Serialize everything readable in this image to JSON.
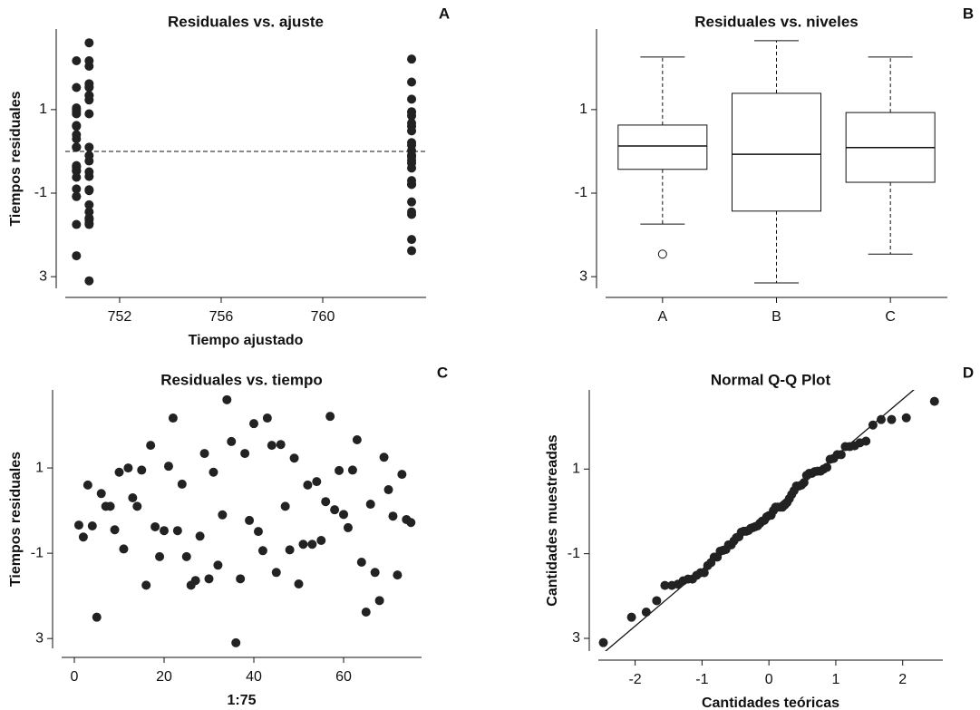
{
  "chart_data": [
    {
      "type": "scatter",
      "title": "Residuales vs. ajuste",
      "panel_label": "A",
      "x_label": "Tiempo ajustado",
      "y_label": "Tiempos residuales",
      "color": "#222222",
      "hline": 0,
      "x": [
        750.3,
        750.3,
        750.3,
        750.3,
        750.3,
        750.3,
        750.3,
        750.3,
        750.3,
        750.3,
        750.3,
        750.3,
        750.3,
        750.3,
        750.3,
        750.3,
        750.3,
        750.3,
        750.3,
        750.3,
        750.3,
        750.3,
        750.3,
        750.3,
        750.3,
        750.8,
        750.8,
        750.8,
        750.8,
        750.8,
        750.8,
        750.8,
        750.8,
        750.8,
        750.8,
        750.8,
        750.8,
        750.8,
        750.8,
        750.8,
        750.8,
        750.8,
        750.8,
        750.8,
        750.8,
        750.8,
        750.8,
        750.8,
        750.8,
        750.8,
        763.5,
        763.5,
        763.5,
        763.5,
        763.5,
        763.5,
        763.5,
        763.5,
        763.5,
        763.5,
        763.5,
        763.5,
        763.5,
        763.5,
        763.5,
        763.5,
        763.5,
        763.5,
        763.5,
        763.5,
        763.5,
        763.5,
        763.5,
        763.5,
        763.5
      ],
      "values": [
        -0.34,
        -0.62,
        0.6,
        -0.36,
        -2.5,
        0.4,
        0.1,
        0.1,
        -0.45,
        0.9,
        -0.9,
        1.0,
        0.3,
        0.1,
        0.95,
        -1.75,
        1.53,
        -0.38,
        -1.08,
        -0.47,
        1.04,
        2.17,
        -0.47,
        0.62,
        -1.08,
        -1.75,
        -1.64,
        -0.6,
        1.34,
        -1.6,
        0.9,
        -1.28,
        -0.1,
        2.6,
        1.62,
        -3.1,
        -1.6,
        1.34,
        -0.23,
        2.04,
        -0.49,
        -0.94,
        2.17,
        1.53,
        -1.45,
        1.55,
        0.1,
        -0.92,
        1.23,
        -1.72,
        -0.79,
        0.6,
        -0.79,
        0.68,
        -0.7,
        0.21,
        2.21,
        0.02,
        0.94,
        -0.09,
        -0.4,
        0.95,
        1.66,
        -1.21,
        -2.38,
        0.15,
        -1.45,
        -2.11,
        1.25,
        0.49,
        -0.13,
        -1.51,
        0.85,
        -0.21,
        -0.28
      ],
      "xlim": [
        749.86,
        764.07
      ],
      "ylim": [
        -3.28,
        2.93
      ],
      "xticks": [
        752,
        756,
        760
      ],
      "yticks": [
        1,
        -1,
        {
          "value": -3,
          "label": "3"
        }
      ]
    },
    {
      "type": "box",
      "title": "Residuales vs. niveles",
      "panel_label": "B",
      "categories": [
        "A",
        "B",
        "C"
      ],
      "min": [
        -1.74,
        -3.15,
        -2.46
      ],
      "q1": [
        -0.43,
        -1.43,
        -0.74
      ],
      "median": [
        0.13,
        -0.07,
        0.09
      ],
      "q3": [
        0.63,
        1.39,
        0.93
      ],
      "max": [
        2.26,
        2.65,
        2.26
      ],
      "outliers": [
        [
          -2.46
        ],
        [],
        []
      ],
      "ylim": [
        -3.28,
        2.93
      ],
      "yticks": [
        1,
        -1,
        {
          "value": -3,
          "label": "3"
        }
      ]
    },
    {
      "type": "scatter",
      "title": "Residuales vs. tiempo",
      "panel_label": "C",
      "x_label": "1:75",
      "y_label": "Tiempos residuales",
      "color": "#222222",
      "x": [
        1,
        2,
        3,
        4,
        5,
        6,
        7,
        8,
        9,
        10,
        11,
        12,
        13,
        14,
        15,
        16,
        17,
        18,
        19,
        20,
        21,
        22,
        23,
        24,
        25,
        26,
        27,
        28,
        29,
        30,
        31,
        32,
        33,
        34,
        35,
        36,
        37,
        38,
        39,
        40,
        41,
        42,
        43,
        44,
        45,
        46,
        47,
        48,
        49,
        50,
        51,
        52,
        53,
        54,
        55,
        56,
        57,
        58,
        59,
        60,
        61,
        62,
        63,
        64,
        65,
        66,
        67,
        68,
        69,
        70,
        71,
        72,
        73,
        74,
        75
      ],
      "values": [
        -0.34,
        -0.62,
        0.6,
        -0.36,
        -2.5,
        0.4,
        0.1,
        0.1,
        -0.45,
        0.9,
        -0.9,
        1.0,
        0.3,
        0.1,
        0.95,
        -1.75,
        1.53,
        -0.38,
        -1.08,
        -0.47,
        1.04,
        2.17,
        -0.47,
        0.62,
        -1.08,
        -1.75,
        -1.64,
        -0.6,
        1.34,
        -1.6,
        0.9,
        -1.28,
        -0.1,
        2.6,
        1.62,
        -3.1,
        -1.6,
        1.34,
        -0.23,
        2.04,
        -0.49,
        -0.94,
        2.17,
        1.53,
        -1.45,
        1.55,
        0.1,
        -0.92,
        1.23,
        -1.72,
        -0.79,
        0.6,
        -0.79,
        0.68,
        -0.7,
        0.21,
        2.21,
        0.02,
        0.94,
        -0.09,
        -0.4,
        0.95,
        1.66,
        -1.21,
        -2.38,
        0.15,
        -1.45,
        -2.11,
        1.25,
        0.49,
        -0.13,
        -1.51,
        0.85,
        -0.21,
        -0.28
      ],
      "xlim": [
        -2.83,
        77.37
      ],
      "ylim": [
        -3.23,
        2.83
      ],
      "xticks": [
        0,
        20,
        40,
        60
      ],
      "yticks": [
        1,
        -1,
        {
          "value": -3,
          "label": "3"
        }
      ]
    },
    {
      "type": "scatter",
      "title": "Normal Q-Q Plot",
      "panel_label": "D",
      "x_label": "Cantidades teóricas",
      "y_label": "Cantidades muestreadas",
      "color": "#222222",
      "reference_line": {
        "intercept": -0.03,
        "slope": 1.34
      },
      "x": [
        -2.475,
        -2.054,
        -1.834,
        -1.678,
        -1.555,
        -1.451,
        -1.361,
        -1.282,
        -1.209,
        -1.142,
        -1.08,
        -1.022,
        -0.967,
        -0.915,
        -0.866,
        -0.818,
        -0.772,
        -0.728,
        -0.685,
        -0.643,
        -0.603,
        -0.563,
        -0.524,
        -0.486,
        -0.449,
        -0.412,
        -0.376,
        -0.341,
        -0.305,
        -0.271,
        -0.236,
        -0.202,
        -0.168,
        -0.134,
        -0.1,
        -0.067,
        -0.033,
        0,
        0.033,
        0.067,
        0.1,
        0.134,
        0.168,
        0.202,
        0.236,
        0.271,
        0.305,
        0.341,
        0.376,
        0.412,
        0.449,
        0.486,
        0.524,
        0.563,
        0.603,
        0.643,
        0.685,
        0.728,
        0.772,
        0.818,
        0.866,
        0.915,
        0.967,
        1.022,
        1.08,
        1.142,
        1.209,
        1.282,
        1.361,
        1.451,
        1.555,
        1.678,
        1.834,
        2.054,
        2.475
      ],
      "values": [
        -3.1,
        -2.5,
        -2.38,
        -2.11,
        -1.75,
        -1.75,
        -1.72,
        -1.64,
        -1.6,
        -1.6,
        -1.51,
        -1.45,
        -1.45,
        -1.28,
        -1.21,
        -1.08,
        -1.08,
        -0.94,
        -0.92,
        -0.9,
        -0.79,
        -0.79,
        -0.7,
        -0.62,
        -0.6,
        -0.49,
        -0.47,
        -0.47,
        -0.45,
        -0.4,
        -0.38,
        -0.36,
        -0.34,
        -0.28,
        -0.23,
        -0.21,
        -0.13,
        -0.1,
        -0.09,
        0.02,
        0.1,
        0.1,
        0.1,
        0.1,
        0.15,
        0.21,
        0.3,
        0.4,
        0.49,
        0.6,
        0.6,
        0.62,
        0.68,
        0.85,
        0.9,
        0.9,
        0.94,
        0.95,
        0.95,
        1.0,
        1.04,
        1.23,
        1.25,
        1.34,
        1.34,
        1.53,
        1.53,
        1.55,
        1.62,
        1.66,
        2.04,
        2.17,
        2.17,
        2.21,
        2.6
      ],
      "xlim": [
        -2.55,
        2.6
      ],
      "ylim": [
        -3.3,
        2.87
      ],
      "xticks": [
        -2,
        -1,
        0,
        1,
        2
      ],
      "yticks": [
        1,
        -1,
        {
          "value": -3,
          "label": "3"
        }
      ]
    }
  ]
}
